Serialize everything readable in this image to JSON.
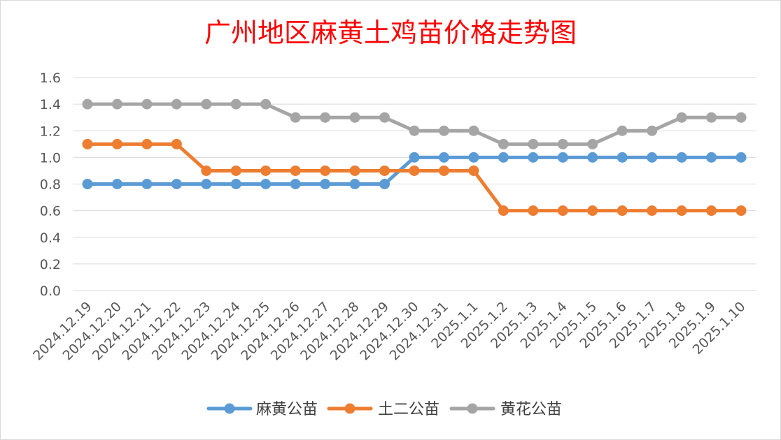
{
  "chart_data": {
    "type": "line",
    "title": "广州地区麻黄土鸡苗价格走势图",
    "xlabel": "",
    "ylabel": "",
    "categories": [
      "2024.12.19",
      "2024.12.20",
      "2024.12.21",
      "2024.12.22",
      "2024.12.23",
      "2024.12.24",
      "2024.12.25",
      "2024.12.26",
      "2024.12.27",
      "2024.12.28",
      "2024.12.29",
      "2024.12.30",
      "2024.12.31",
      "2025.1.1",
      "2025.1.2",
      "2025.1.3",
      "2025.1.4",
      "2025.1.5",
      "2025.1.6",
      "2025.1.7",
      "2025.1.8",
      "2025.1.9",
      "2025.1.10"
    ],
    "ylim": [
      0,
      1.6
    ],
    "yticks": [
      "0.0",
      "0.2",
      "0.4",
      "0.6",
      "0.8",
      "1.0",
      "1.2",
      "1.4",
      "1.6"
    ],
    "grid": true,
    "legend_position": "bottom",
    "series": [
      {
        "name": "麻黄公苗",
        "color": "#5b9bd5",
        "values": [
          0.8,
          0.8,
          0.8,
          0.8,
          0.8,
          0.8,
          0.8,
          0.8,
          0.8,
          0.8,
          0.8,
          1.0,
          1.0,
          1.0,
          1.0,
          1.0,
          1.0,
          1.0,
          1.0,
          1.0,
          1.0,
          1.0,
          1.0
        ]
      },
      {
        "name": "土二公苗",
        "color": "#ed7d31",
        "values": [
          1.1,
          1.1,
          1.1,
          1.1,
          0.9,
          0.9,
          0.9,
          0.9,
          0.9,
          0.9,
          0.9,
          0.9,
          0.9,
          0.9,
          0.6,
          0.6,
          0.6,
          0.6,
          0.6,
          0.6,
          0.6,
          0.6,
          0.6
        ]
      },
      {
        "name": "黄花公苗",
        "color": "#a5a5a5",
        "values": [
          1.4,
          1.4,
          1.4,
          1.4,
          1.4,
          1.4,
          1.4,
          1.3,
          1.3,
          1.3,
          1.3,
          1.2,
          1.2,
          1.2,
          1.1,
          1.1,
          1.1,
          1.1,
          1.2,
          1.2,
          1.3,
          1.3,
          1.3
        ]
      }
    ]
  }
}
